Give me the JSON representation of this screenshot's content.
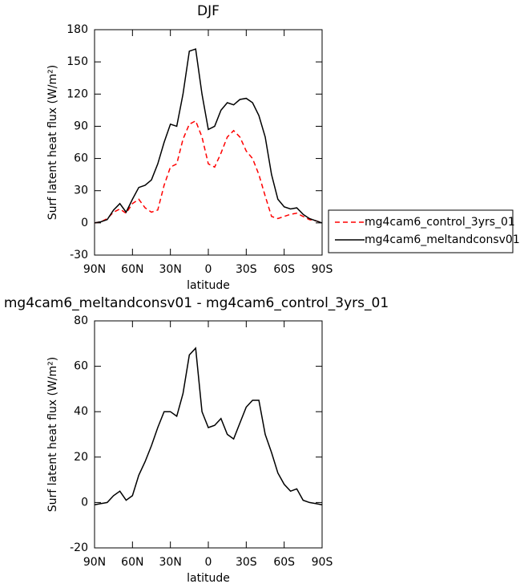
{
  "chart_data": [
    {
      "type": "line",
      "title": "DJF",
      "xlabel": "latitude",
      "ylabel": "Surf latent heat flux (W/m²)",
      "x": [
        90,
        85,
        80,
        75,
        70,
        65,
        60,
        55,
        50,
        45,
        40,
        35,
        30,
        25,
        20,
        15,
        10,
        5,
        0,
        -5,
        -10,
        -15,
        -20,
        -25,
        -30,
        -35,
        -40,
        -45,
        -50,
        -55,
        -60,
        -65,
        -70,
        -75,
        -80,
        -85,
        -90
      ],
      "series": [
        {
          "name": "mg4cam6_control_3yrs_01",
          "color": "#ff0000",
          "line_style": "dashed",
          "values": [
            0,
            1,
            4,
            10,
            13,
            9,
            18,
            22,
            14,
            10,
            12,
            35,
            52,
            55,
            78,
            92,
            95,
            80,
            55,
            52,
            65,
            80,
            86,
            80,
            67,
            60,
            45,
            25,
            6,
            4,
            6,
            8,
            9,
            6,
            3,
            2,
            0
          ]
        },
        {
          "name": "mg4cam6_meltandconsv01",
          "color": "#000000",
          "line_style": "solid",
          "values": [
            0,
            1,
            3,
            12,
            18,
            10,
            22,
            33,
            35,
            40,
            55,
            75,
            92,
            90,
            120,
            160,
            162,
            120,
            87,
            90,
            105,
            112,
            110,
            115,
            116,
            112,
            100,
            80,
            45,
            22,
            15,
            13,
            14,
            8,
            4,
            2,
            0
          ]
        }
      ],
      "xlim": [
        90,
        -90
      ],
      "xticks": [
        {
          "value": 90,
          "label": "90N"
        },
        {
          "value": 60,
          "label": "60N"
        },
        {
          "value": 30,
          "label": "30N"
        },
        0,
        {
          "value": -30,
          "label": "30S"
        },
        {
          "value": -60,
          "label": "60S"
        },
        {
          "value": -90,
          "label": "90S"
        }
      ],
      "ylim": [
        -30,
        180
      ],
      "yticks": [
        -30,
        0,
        30,
        60,
        90,
        120,
        150,
        180
      ],
      "legend": "right"
    },
    {
      "type": "line",
      "title": "mg4cam6_meltandconsv01 - mg4cam6_control_3yrs_01",
      "xlabel": "latitude",
      "ylabel": "Surf latent heat flux (W/m²)",
      "x": [
        90,
        85,
        80,
        75,
        70,
        65,
        60,
        55,
        50,
        45,
        40,
        35,
        30,
        25,
        20,
        15,
        10,
        5,
        0,
        -5,
        -10,
        -15,
        -20,
        -25,
        -30,
        -35,
        -40,
        -45,
        -50,
        -55,
        -60,
        -65,
        -70,
        -75,
        -80,
        -85,
        -90
      ],
      "series": [
        {
          "color": "#000000",
          "line_style": "solid",
          "values": [
            -1,
            -0.5,
            0,
            3,
            5,
            1,
            3,
            12,
            18,
            25,
            33,
            40,
            40,
            38,
            48,
            65,
            68,
            40,
            33,
            34,
            37,
            30,
            28,
            35,
            42,
            45,
            45,
            30,
            22,
            13,
            8,
            5,
            6,
            1,
            0,
            -0.5,
            -1
          ]
        }
      ],
      "xlim": [
        90,
        -90
      ],
      "xticks": [
        {
          "value": 90,
          "label": "90N"
        },
        {
          "value": 60,
          "label": "60N"
        },
        {
          "value": 30,
          "label": "30N"
        },
        0,
        {
          "value": -30,
          "label": "30S"
        },
        {
          "value": -60,
          "label": "60S"
        },
        {
          "value": -90,
          "label": "90S"
        }
      ],
      "ylim": [
        -20,
        80
      ],
      "yticks": [
        -20,
        0,
        20,
        40,
        60,
        80
      ]
    }
  ]
}
